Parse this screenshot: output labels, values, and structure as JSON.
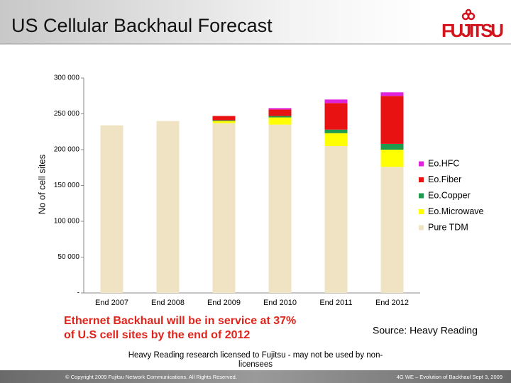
{
  "chart_data": {
    "type": "stacked_bar",
    "title": "US Cellular Backhaul Forecast",
    "logo": "FUJITSU",
    "ylabel": "No of cell sites",
    "categories": [
      "End 2007",
      "End 2008",
      "End 2009",
      "End 2010",
      "End 2011",
      "End 2012"
    ],
    "series": [
      {
        "name": "Pure TDM",
        "color": "#efe3c4",
        "values": [
          234000,
          240000,
          237000,
          235000,
          205000,
          176000
        ]
      },
      {
        "name": "Eo.Microwave",
        "color": "#ffff00",
        "values": [
          0,
          0,
          3000,
          10000,
          18000,
          24000
        ]
      },
      {
        "name": "Eo.Copper",
        "color": "#1f9a4f",
        "values": [
          0,
          0,
          1000,
          2000,
          5000,
          8000
        ]
      },
      {
        "name": "Eo.Fiber",
        "color": "#e81212",
        "values": [
          0,
          0,
          6000,
          9000,
          37000,
          67000
        ]
      },
      {
        "name": "Eo.HFC",
        "color": "#e024dc",
        "values": [
          0,
          0,
          0,
          2000,
          5000,
          5000
        ]
      }
    ],
    "ylim": [
      0,
      300000
    ],
    "yticks": [
      {
        "value": 0,
        "label": "-"
      },
      {
        "value": 50000,
        "label": "50 000"
      },
      {
        "value": 100000,
        "label": "100 000"
      },
      {
        "value": 150000,
        "label": "150 000"
      },
      {
        "value": 200000,
        "label": "200 000"
      },
      {
        "value": 250000,
        "label": "250 000"
      },
      {
        "value": 300000,
        "label": "300 000"
      }
    ],
    "legend": "right",
    "annotation": [
      "Ethernet Backhaul will be in service at 37%",
      "of U.S cell sites by the end of 2012"
    ],
    "source": "Source:  Heavy Reading",
    "note": [
      "Heavy Reading research licensed to Fujitsu - may not be used by non-",
      "licensees"
    ],
    "footer_left": "© Copyright 2009 Fujitsu Network Communications. All Rights Reserved.",
    "footer_right": "4G WE – Evolution of Backhaul Sept 3, 2009"
  }
}
